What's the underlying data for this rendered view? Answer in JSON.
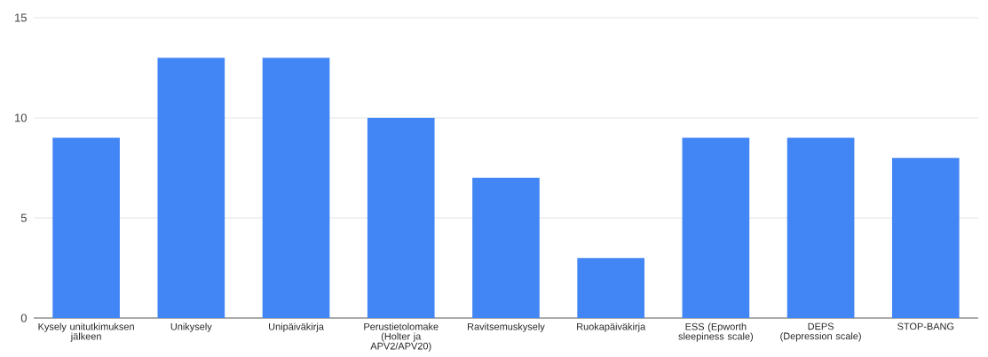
{
  "chart_data": {
    "type": "bar",
    "categories": [
      "Kysely unitutkimuksen jälkeen",
      "Unikysely",
      "Unipäiväkirja",
      "Perustietolomake (Holter ja APV2/APV20)",
      "Ravitsemuskysely",
      "Ruokapäiväkirja",
      "ESS (Epworth sleepiness scale)",
      "DEPS (Depression scale)",
      "STOP-BANG"
    ],
    "values": [
      9,
      13,
      13,
      10,
      7,
      3,
      9,
      9,
      8
    ],
    "color": "#4285f4",
    "ylim": [
      0,
      15
    ],
    "yticks": [
      0,
      5,
      10,
      15
    ],
    "grid": "y"
  }
}
